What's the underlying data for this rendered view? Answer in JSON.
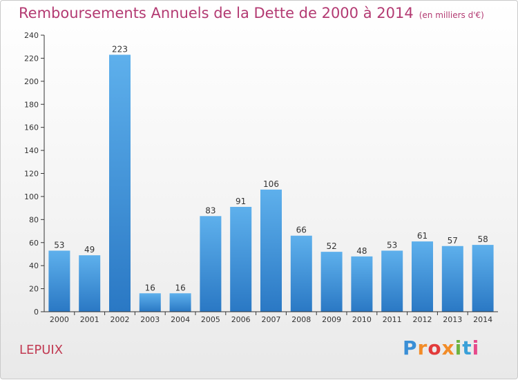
{
  "header": {
    "title": "Remboursements Annuels de la Dette de 2000 à 2014",
    "unit": "(en milliers d'€)"
  },
  "footer": {
    "commune": "LEPUIX",
    "brand": "Proxiti"
  },
  "colors": {
    "title": "#b33a72",
    "bar_top": "#5eb0ec",
    "bar_bottom": "#2a78c4",
    "commune": "#c13a52"
  },
  "chart_data": {
    "type": "bar",
    "categories": [
      "2000",
      "2001",
      "2002",
      "2003",
      "2004",
      "2005",
      "2006",
      "2007",
      "2008",
      "2009",
      "2010",
      "2011",
      "2012",
      "2013",
      "2014"
    ],
    "values": [
      53,
      49,
      223,
      16,
      16,
      83,
      91,
      106,
      66,
      52,
      48,
      53,
      61,
      57,
      58
    ],
    "data_labels": [
      "53",
      "49",
      "223",
      "16",
      "16",
      "83",
      "91",
      "106",
      "66",
      "52",
      "48",
      "53",
      "61",
      "57",
      "58"
    ],
    "ylim": [
      0,
      240
    ],
    "yticks": [
      0,
      20,
      40,
      60,
      80,
      100,
      120,
      140,
      160,
      180,
      200,
      220,
      240
    ],
    "grid": false
  }
}
